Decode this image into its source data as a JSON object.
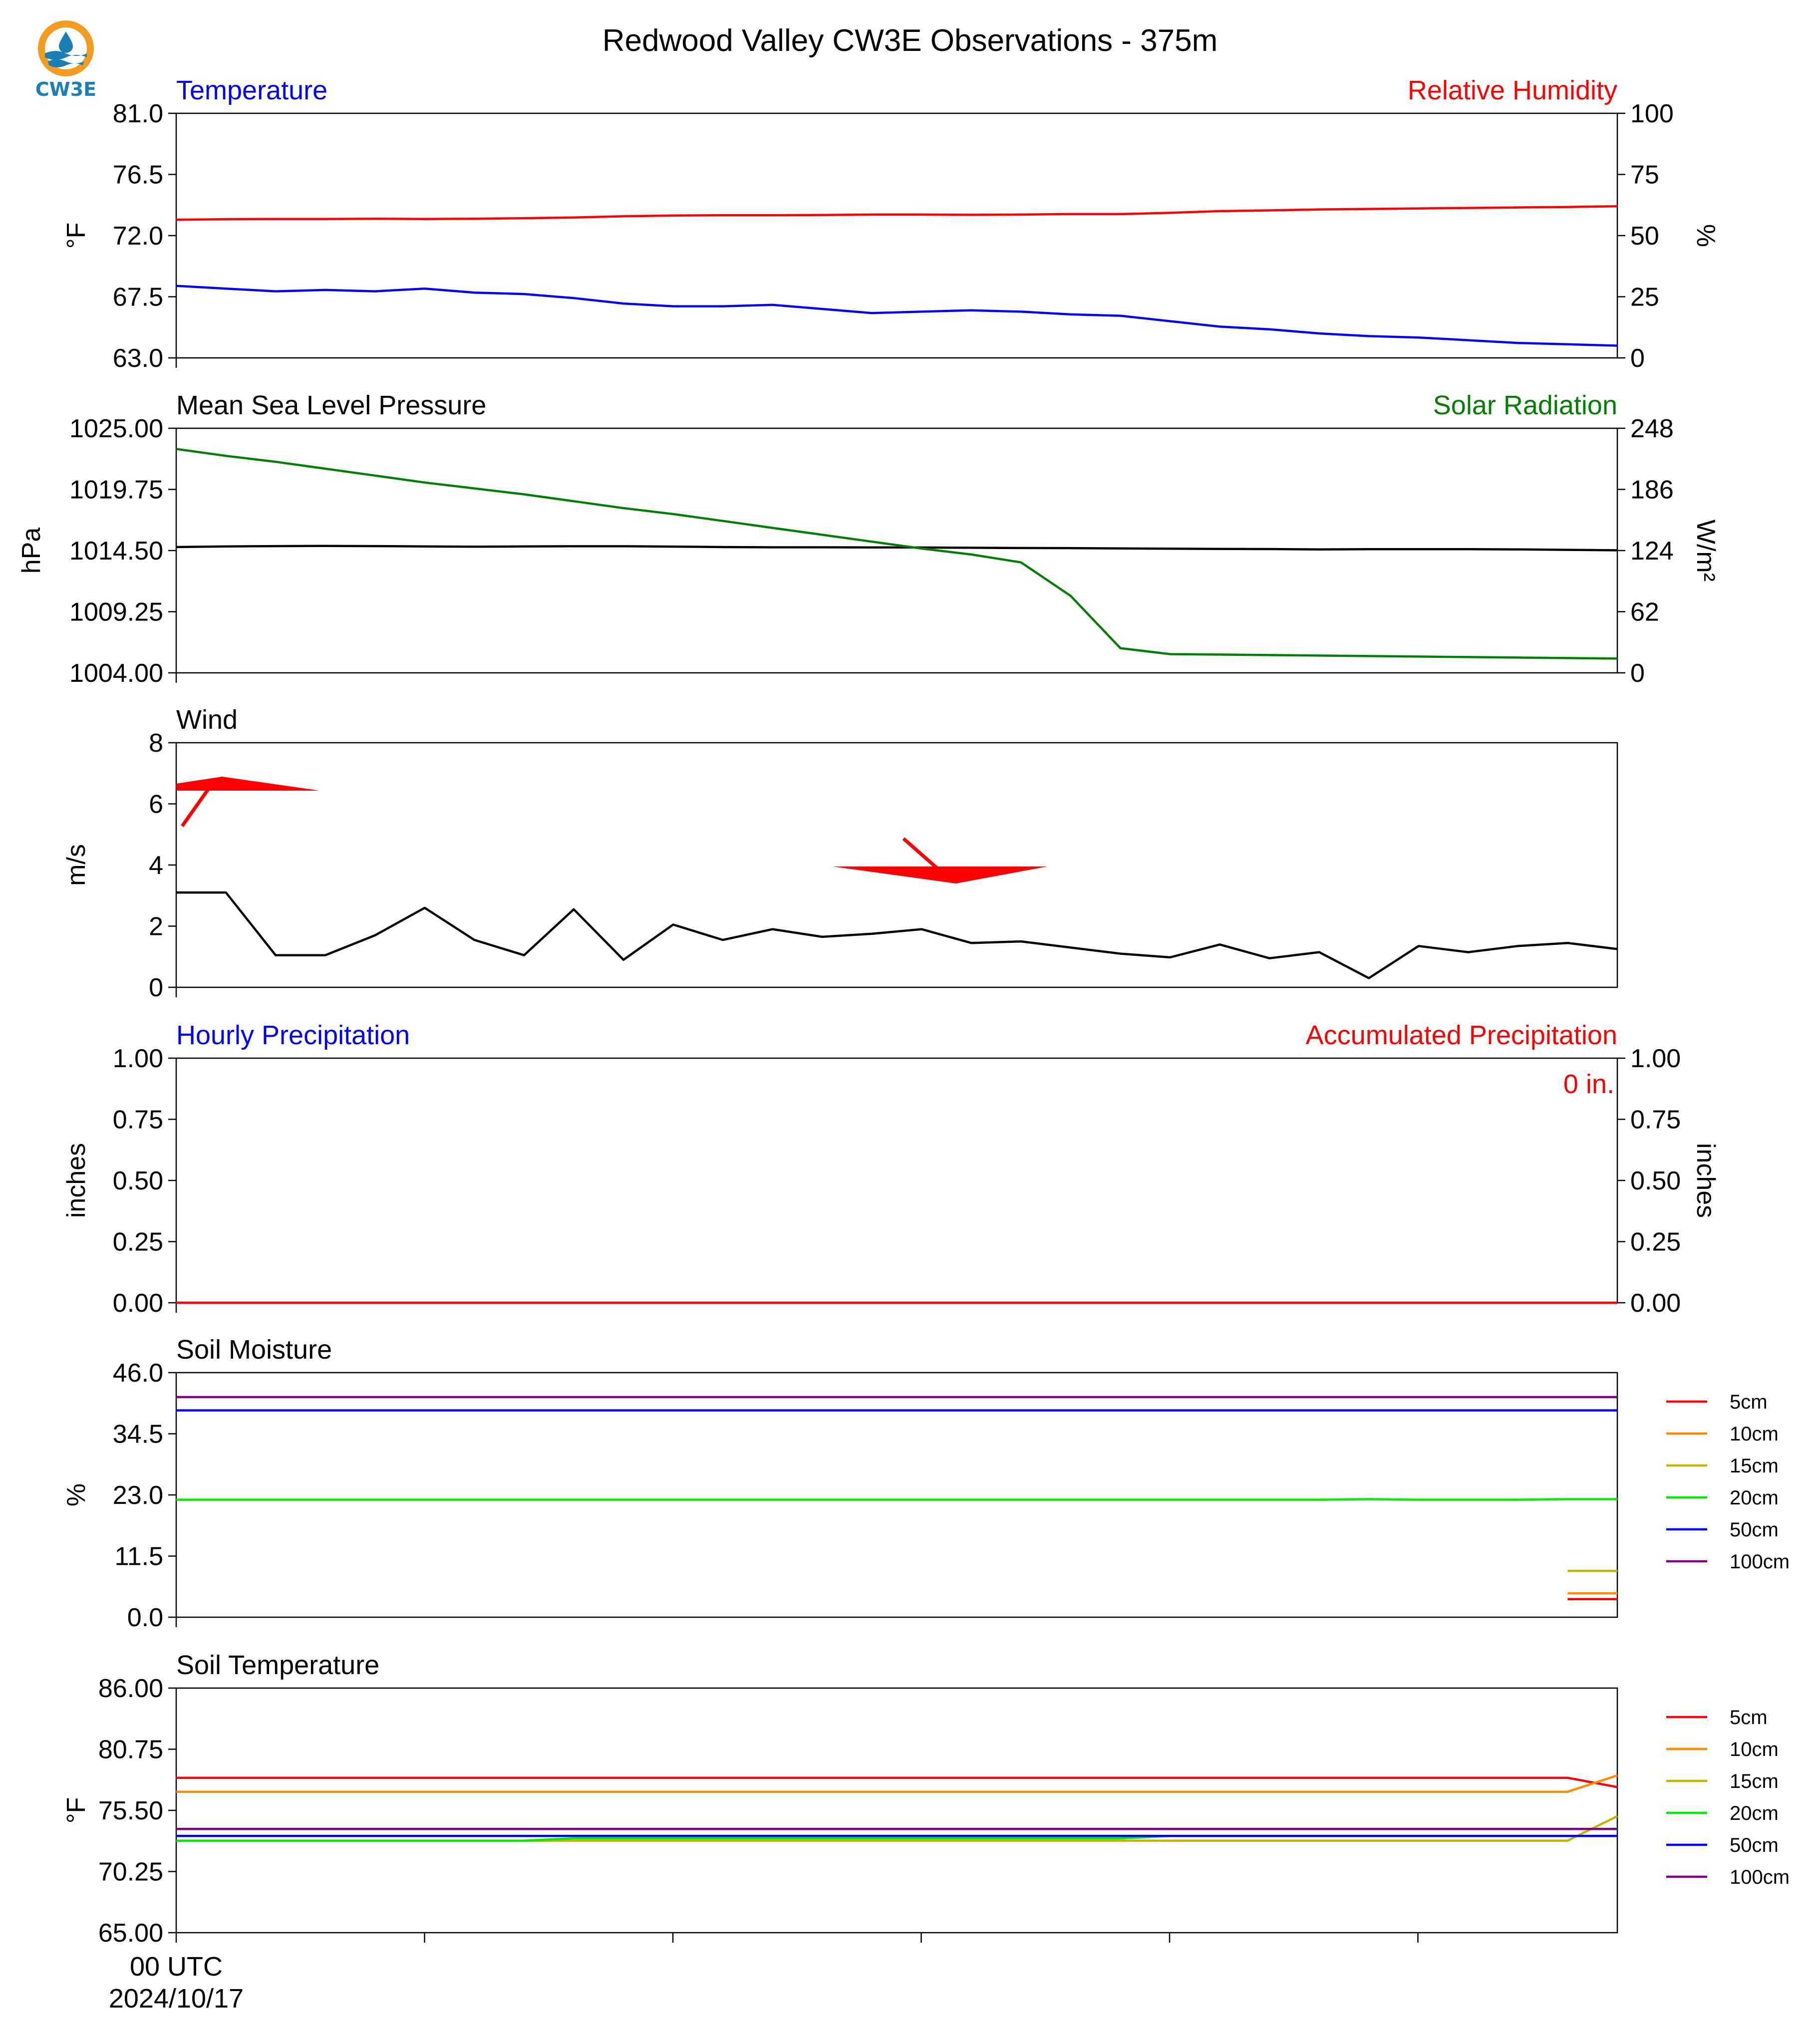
{
  "title": "Redwood Valley CW3E Observations - 375m",
  "logo": {
    "text": "CW3E",
    "colors": {
      "ring": "#f39c1f",
      "water": "#1a7fb5"
    }
  },
  "chart_data": [
    {
      "type": "line",
      "panel": "temperature",
      "title_left": "Temperature",
      "title_right": "Relative Humidity",
      "ylabel": "°F",
      "ylabel_right": "%",
      "ylim": [
        63.0,
        81.0
      ],
      "ylim_right": [
        0,
        100
      ],
      "yticks": [
        "63.0",
        "67.5",
        "72.0",
        "76.5",
        "81.0"
      ],
      "yticks_right": [
        "0",
        "25",
        "50",
        "75",
        "100"
      ],
      "x": [
        0,
        1,
        2,
        3,
        4,
        5,
        6,
        7,
        8,
        9,
        10,
        11,
        12,
        13,
        14,
        15,
        16,
        17,
        18,
        19,
        20,
        21,
        22,
        23,
        24,
        25,
        26,
        27,
        28,
        29
      ],
      "series": [
        {
          "axis": "left",
          "color": "#0000ff",
          "values": [
            68.3,
            68.1,
            67.9,
            68.0,
            67.9,
            68.1,
            67.8,
            67.7,
            67.4,
            67.0,
            66.8,
            66.8,
            66.9,
            66.6,
            66.3,
            66.4,
            66.5,
            66.4,
            66.2,
            66.1,
            65.7,
            65.3,
            65.1,
            64.8,
            64.6,
            64.5,
            64.3,
            64.1,
            64.0,
            63.9
          ]
        },
        {
          "axis": "right",
          "color": "#ff0000",
          "values": [
            56.5,
            56.7,
            56.8,
            56.8,
            56.9,
            56.8,
            56.9,
            57.1,
            57.4,
            57.9,
            58.2,
            58.3,
            58.3,
            58.4,
            58.6,
            58.6,
            58.5,
            58.6,
            58.8,
            58.8,
            59.3,
            60.0,
            60.3,
            60.7,
            60.9,
            61.1,
            61.3,
            61.5,
            61.7,
            62.0
          ]
        }
      ]
    },
    {
      "type": "line",
      "panel": "pressure",
      "title_left": "Mean Sea Level Pressure",
      "title_right": "Solar Radiation",
      "ylabel": "hPa",
      "ylabel_right": "W/m²",
      "ylim": [
        1004.0,
        1025.0
      ],
      "ylim_right": [
        0,
        248
      ],
      "yticks": [
        "1004.00",
        "1009.25",
        "1014.50",
        "1019.75",
        "1025.00"
      ],
      "yticks_right": [
        "0",
        "62",
        "124",
        "186",
        "248"
      ],
      "x": [
        0,
        1,
        2,
        3,
        4,
        5,
        6,
        7,
        8,
        9,
        10,
        11,
        12,
        13,
        14,
        15,
        16,
        17,
        18,
        19,
        20,
        21,
        22,
        23,
        24,
        25,
        26,
        27,
        28,
        29
      ],
      "series": [
        {
          "axis": "left",
          "color": "#000000",
          "values": [
            1014.8,
            1014.85,
            1014.88,
            1014.9,
            1014.88,
            1014.85,
            1014.83,
            1014.85,
            1014.87,
            1014.87,
            1014.84,
            1014.8,
            1014.78,
            1014.78,
            1014.77,
            1014.76,
            1014.74,
            1014.72,
            1014.71,
            1014.68,
            1014.66,
            1014.64,
            1014.63,
            1014.6,
            1014.62,
            1014.62,
            1014.62,
            1014.6,
            1014.56,
            1014.52
          ]
        },
        {
          "axis": "right",
          "color": "#008000",
          "values": [
            227,
            220,
            214,
            207,
            200,
            193,
            187,
            181,
            174,
            167,
            161,
            154,
            147,
            140,
            133,
            126,
            120,
            112,
            78,
            25,
            19,
            18.5,
            18,
            17.5,
            17,
            16.5,
            16,
            15.5,
            15,
            14.5
          ]
        }
      ]
    },
    {
      "type": "line",
      "panel": "wind",
      "title_left": "Wind",
      "ylabel": "m/s",
      "ylim": [
        0,
        8
      ],
      "yticks": [
        "0",
        "2",
        "4",
        "6",
        "8"
      ],
      "x": [
        0,
        1,
        2,
        3,
        4,
        5,
        6,
        7,
        8,
        9,
        10,
        11,
        12,
        13,
        14,
        15,
        16,
        17,
        18,
        19,
        20,
        21,
        22,
        23,
        24,
        25,
        26,
        27,
        28,
        29
      ],
      "series": [
        {
          "color": "#000000",
          "values": [
            3.1,
            3.1,
            1.05,
            1.05,
            1.7,
            2.6,
            1.55,
            1.05,
            2.55,
            0.9,
            2.05,
            1.55,
            1.9,
            1.65,
            1.75,
            1.9,
            1.45,
            1.5,
            1.3,
            1.1,
            0.98,
            1.4,
            0.95,
            1.15,
            0.3,
            1.35,
            1.15,
            1.35,
            1.45,
            1.25
          ]
        }
      ],
      "barbs_color": "#ff0000"
    },
    {
      "type": "line",
      "panel": "precipitation",
      "title_left": "Hourly Precipitation",
      "title_right": "Accumulated Precipitation",
      "ylabel": "inches",
      "ylabel_right": "inches",
      "ylim": [
        0,
        1
      ],
      "ylim_right": [
        0,
        1
      ],
      "yticks": [
        "0.00",
        "0.25",
        "0.50",
        "0.75",
        "1.00"
      ],
      "yticks_right": [
        "0.00",
        "0.25",
        "0.50",
        "0.75",
        "1.00"
      ],
      "annotation": "0 in.",
      "x": [
        0,
        29
      ],
      "series": [
        {
          "axis": "left",
          "color": "#0000ff",
          "values": [
            0,
            0
          ]
        },
        {
          "axis": "right",
          "color": "#ff0000",
          "values": [
            0,
            0
          ]
        }
      ]
    },
    {
      "type": "line",
      "panel": "soil_moisture",
      "title_left": "Soil Moisture",
      "ylabel": "%",
      "ylim": [
        0.0,
        46.0
      ],
      "yticks": [
        "0.0",
        "11.5",
        "23.0",
        "34.5",
        "46.0"
      ],
      "legend": [
        "5cm",
        "10cm",
        "15cm",
        "20cm",
        "50cm",
        "100cm"
      ],
      "series": [
        {
          "name": "5cm",
          "color": "#ff0000",
          "x": [
            28,
            29
          ],
          "values": [
            3.4,
            3.4
          ]
        },
        {
          "name": "10cm",
          "color": "#ff8c00",
          "x": [
            28,
            29
          ],
          "values": [
            4.5,
            4.5
          ]
        },
        {
          "name": "15cm",
          "color": "#c8b400",
          "x": [
            28,
            29
          ],
          "values": [
            8.7,
            8.7
          ]
        },
        {
          "name": "20cm",
          "color": "#00ee00",
          "x": [
            0,
            23,
            24,
            25,
            26,
            27,
            28,
            29
          ],
          "values": [
            22.1,
            22.1,
            22.2,
            22.1,
            22.1,
            22.1,
            22.2,
            22.2
          ]
        },
        {
          "name": "50cm",
          "color": "#0000ff",
          "x": [
            0,
            29
          ],
          "values": [
            38.9,
            38.9
          ]
        },
        {
          "name": "100cm",
          "color": "#800080",
          "x": [
            0,
            29
          ],
          "values": [
            41.4,
            41.4
          ]
        }
      ]
    },
    {
      "type": "line",
      "panel": "soil_temperature",
      "title_left": "Soil Temperature",
      "ylabel": "°F",
      "ylim": [
        65.0,
        86.0
      ],
      "yticks": [
        "65.00",
        "70.25",
        "75.50",
        "80.75",
        "86.00"
      ],
      "legend": [
        "5cm",
        "10cm",
        "15cm",
        "20cm",
        "50cm",
        "100cm"
      ],
      "series": [
        {
          "name": "5cm",
          "color": "#ff0000",
          "x": [
            0,
            28,
            29
          ],
          "values": [
            78.3,
            78.3,
            77.5
          ]
        },
        {
          "name": "10cm",
          "color": "#ff8c00",
          "x": [
            0,
            28,
            29
          ],
          "values": [
            77.1,
            77.1,
            78.5
          ]
        },
        {
          "name": "15cm",
          "color": "#c8b400",
          "x": [
            0,
            28,
            29
          ],
          "values": [
            72.9,
            72.9,
            75.0
          ]
        },
        {
          "name": "20cm",
          "color": "#00ee00",
          "x": [
            0,
            7,
            8,
            19,
            20,
            29
          ],
          "values": [
            72.9,
            72.9,
            73.1,
            73.1,
            73.3,
            73.3
          ]
        },
        {
          "name": "50cm",
          "color": "#0000ff",
          "x": [
            0,
            29
          ],
          "values": [
            73.3,
            73.3
          ]
        },
        {
          "name": "100cm",
          "color": "#800080",
          "x": [
            0,
            29
          ],
          "values": [
            73.9,
            73.9
          ]
        }
      ],
      "xtick_label": [
        "00 UTC",
        "2024/10/17"
      ]
    }
  ]
}
